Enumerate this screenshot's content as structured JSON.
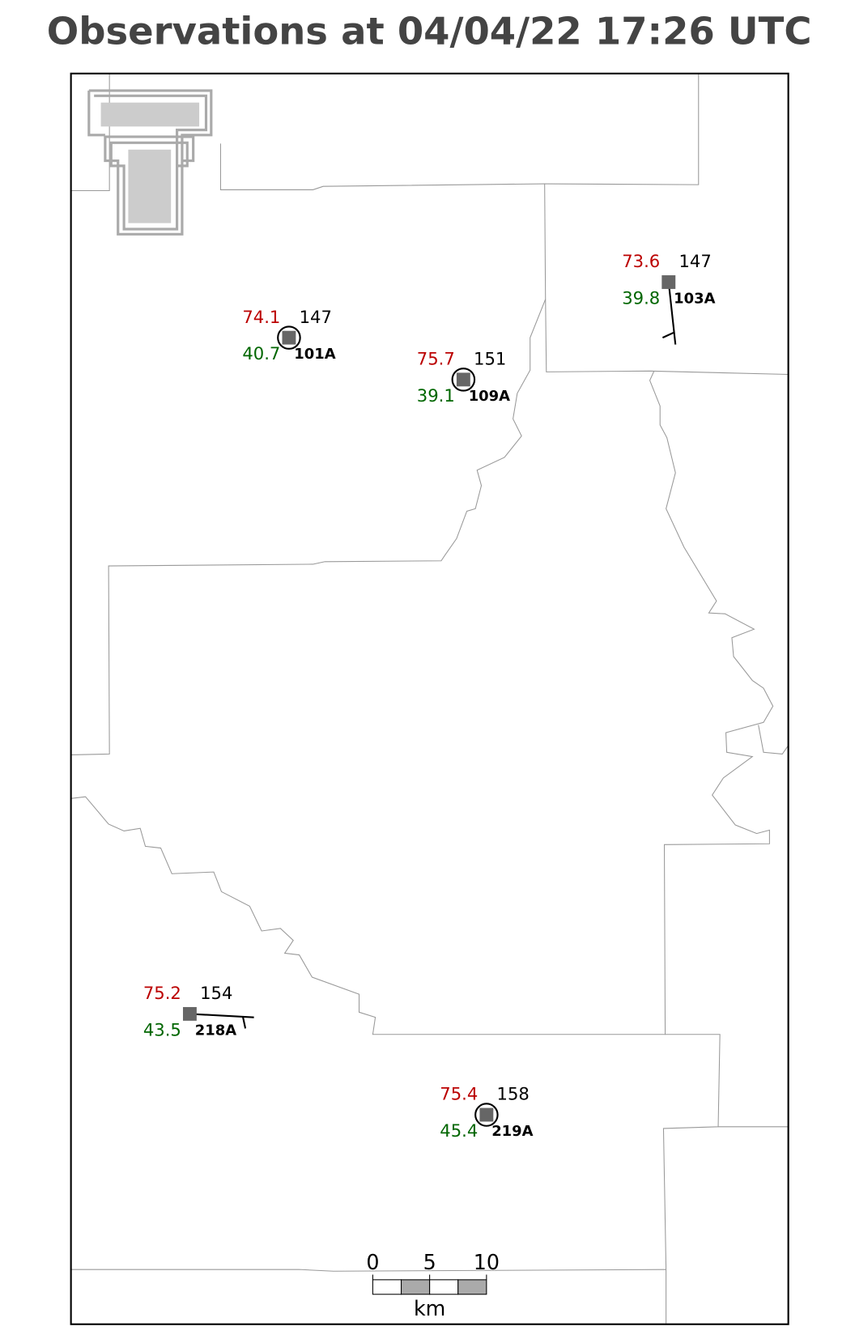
{
  "title": "Observations at 04/04/22 17:26 UTC",
  "stations": [
    {
      "id": "101A",
      "temperature": 74.1,
      "dewpoint": 40.7,
      "pressure": 147
    },
    {
      "id": "109A",
      "temperature": 75.7,
      "dewpoint": 39.1,
      "pressure": 151
    },
    {
      "id": "103A",
      "temperature": 73.6,
      "dewpoint": 39.8,
      "pressure": 147
    },
    {
      "id": "218A",
      "temperature": 75.2,
      "dewpoint": 43.5,
      "pressure": 154
    },
    {
      "id": "219A",
      "temperature": 75.4,
      "dewpoint": 45.4,
      "pressure": 158
    }
  ],
  "scale_bar": {
    "ticks": [
      0,
      5,
      10
    ],
    "unit": "km"
  }
}
